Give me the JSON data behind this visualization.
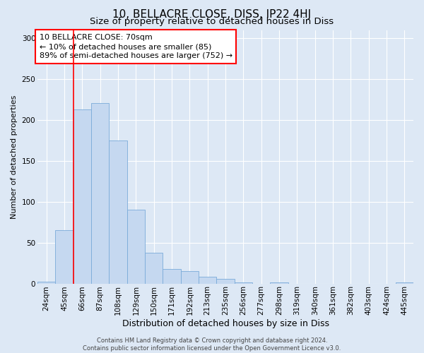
{
  "title": "10, BELLACRE CLOSE, DISS, IP22 4HJ",
  "subtitle": "Size of property relative to detached houses in Diss",
  "xlabel": "Distribution of detached houses by size in Diss",
  "ylabel": "Number of detached properties",
  "footer_line1": "Contains HM Land Registry data © Crown copyright and database right 2024.",
  "footer_line2": "Contains public sector information licensed under the Open Government Licence v3.0.",
  "bar_labels": [
    "24sqm",
    "45sqm",
    "66sqm",
    "87sqm",
    "108sqm",
    "129sqm",
    "150sqm",
    "171sqm",
    "192sqm",
    "213sqm",
    "235sqm",
    "256sqm",
    "277sqm",
    "298sqm",
    "319sqm",
    "340sqm",
    "361sqm",
    "382sqm",
    "403sqm",
    "424sqm",
    "445sqm"
  ],
  "bar_values": [
    2,
    65,
    213,
    221,
    175,
    90,
    38,
    18,
    15,
    8,
    6,
    1,
    0,
    1,
    0,
    0,
    0,
    0,
    0,
    0,
    1
  ],
  "bar_color": "#c5d8f0",
  "bar_edgecolor": "#7aabda",
  "background_color": "#dde8f5",
  "annotation_text": "10 BELLACRE CLOSE: 70sqm\n← 10% of detached houses are smaller (85)\n89% of semi-detached houses are larger (752) →",
  "annotation_box_facecolor": "white",
  "annotation_box_edgecolor": "red",
  "vline_color": "red",
  "vline_x_index": 1.5,
  "ylim": [
    0,
    310
  ],
  "yticks": [
    0,
    50,
    100,
    150,
    200,
    250,
    300
  ],
  "grid_color": "white",
  "title_fontsize": 11,
  "subtitle_fontsize": 9.5,
  "xlabel_fontsize": 9,
  "ylabel_fontsize": 8,
  "tick_fontsize": 7.5,
  "annotation_fontsize": 8,
  "footer_fontsize": 6
}
